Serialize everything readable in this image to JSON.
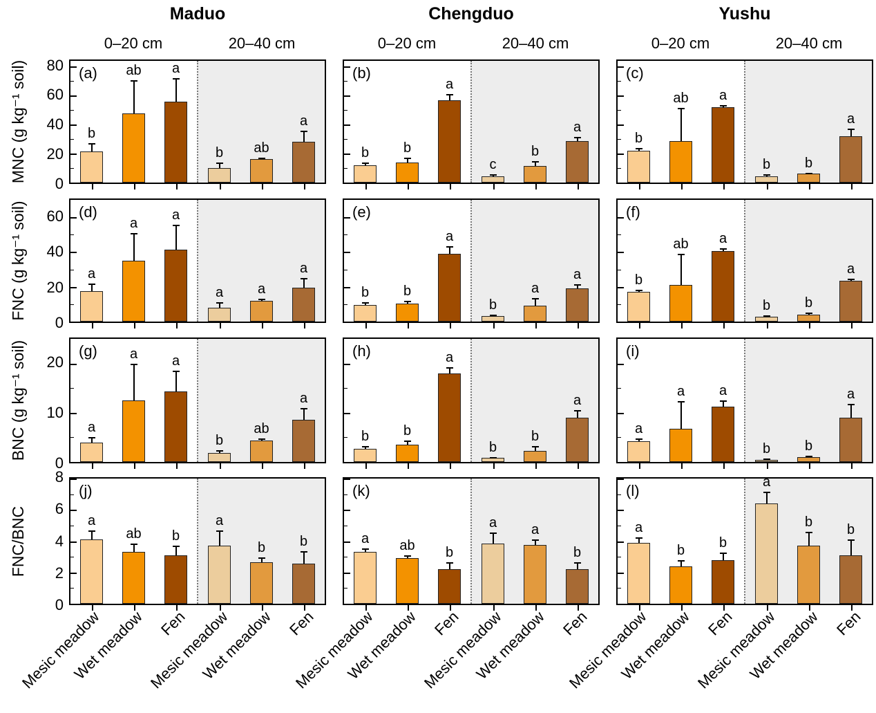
{
  "chart_data": {
    "type": "bar",
    "title": "",
    "sites": [
      "Maduo",
      "Chengduo",
      "Yushu"
    ],
    "depth_headers": [
      "0–20 cm",
      "20–40 cm"
    ],
    "categories": [
      "Mesic meadow",
      "Wet meadow",
      "Fen"
    ],
    "colors": {
      "bars_0_20": [
        "#FACD91",
        "#F39200",
        "#9E4B00"
      ],
      "bars_20_40": [
        "#ECCD9D",
        "#E29A3E",
        "#A76A34"
      ],
      "deep_background": "#EDEDED",
      "axis": "#000000"
    },
    "rows": [
      {
        "ylabel": "MNC (g kg⁻¹ soil)",
        "ymax": 84,
        "yticks": [
          0,
          20,
          40,
          60,
          80
        ],
        "panels": [
          {
            "tag": "(a)",
            "site": "Maduo",
            "halves": [
              {
                "depth": "0–20 cm",
                "values": [
                  21.5,
                  47.5,
                  56
                ],
                "errors": [
                  5.5,
                  23,
                  16
                ],
                "letters": [
                  "b",
                  "ab",
                  "a"
                ]
              },
              {
                "depth": "20–40 cm",
                "values": [
                  10,
                  16,
                  28
                ],
                "errors": [
                  4,
                  1,
                  8
                ],
                "letters": [
                  "b",
                  "ab",
                  "a"
                ]
              }
            ]
          },
          {
            "tag": "(b)",
            "site": "Chengduo",
            "halves": [
              {
                "depth": "0–20 cm",
                "values": [
                  12,
                  14,
                  57
                ],
                "errors": [
                  2,
                  3,
                  4
                ],
                "letters": [
                  "b",
                  "b",
                  "a"
                ]
              },
              {
                "depth": "20–40 cm",
                "values": [
                  4.5,
                  11.5,
                  28.5
                ],
                "errors": [
                  1,
                  3.5,
                  3
                ],
                "letters": [
                  "c",
                  "b",
                  "a"
                ]
              }
            ]
          },
          {
            "tag": "(c)",
            "site": "Yushu",
            "halves": [
              {
                "depth": "0–20 cm",
                "values": [
                  22,
                  28.5,
                  52
                ],
                "errors": [
                  2,
                  23,
                  1.5
                ],
                "letters": [
                  "b",
                  "ab",
                  "a"
                ]
              },
              {
                "depth": "20–40 cm",
                "values": [
                  4.3,
                  6,
                  32
                ],
                "errors": [
                  1.5,
                  0.8,
                  5
                ],
                "letters": [
                  "b",
                  "b",
                  "a"
                ]
              }
            ]
          }
        ]
      },
      {
        "ylabel": "FNC (g kg⁻¹ soil)",
        "ymax": 70,
        "yticks": [
          0,
          20,
          40,
          60
        ],
        "panels": [
          {
            "tag": "(d)",
            "site": "Maduo",
            "halves": [
              {
                "depth": "0–20 cm",
                "values": [
                  17.5,
                  35,
                  41.5
                ],
                "errors": [
                  4.5,
                  16,
                  14
                ],
                "letters": [
                  "a",
                  "a",
                  "a"
                ]
              },
              {
                "depth": "20–40 cm",
                "values": [
                  8,
                  12,
                  19.5
                ],
                "errors": [
                  3,
                  1,
                  5.5
                ],
                "letters": [
                  "a",
                  "a",
                  "a"
                ]
              }
            ]
          },
          {
            "tag": "(e)",
            "site": "Chengduo",
            "halves": [
              {
                "depth": "0–20 cm",
                "values": [
                  9.5,
                  10.5,
                  39
                ],
                "errors": [
                  1.5,
                  1.5,
                  4.5
                ],
                "letters": [
                  "b",
                  "b",
                  "a"
                ]
              },
              {
                "depth": "20–40 cm",
                "values": [
                  3.3,
                  9,
                  19
                ],
                "errors": [
                  0.7,
                  4.5,
                  2.5
                ],
                "letters": [
                  "b",
                  "a",
                  "a"
                ]
              }
            ]
          },
          {
            "tag": "(f)",
            "site": "Yushu",
            "halves": [
              {
                "depth": "0–20 cm",
                "values": [
                  17,
                  21,
                  40.5
                ],
                "errors": [
                  1.5,
                  18,
                  1.5
                ],
                "letters": [
                  "b",
                  "ab",
                  "a"
                ]
              },
              {
                "depth": "20–40 cm",
                "values": [
                  2.7,
                  4,
                  23.3
                ],
                "errors": [
                  1,
                  1,
                  1.5
                ],
                "letters": [
                  "b",
                  "b",
                  "a"
                ]
              }
            ]
          }
        ]
      },
      {
        "ylabel": "BNC (g kg⁻¹ soil)",
        "ymax": 25,
        "yticks": [
          0,
          10,
          20
        ],
        "panels": [
          {
            "tag": "(g)",
            "site": "Maduo",
            "halves": [
              {
                "depth": "0–20 cm",
                "values": [
                  4,
                  12.5,
                  14.3
                ],
                "errors": [
                  1,
                  7.5,
                  4.3
                ],
                "letters": [
                  "a",
                  "a",
                  "a"
                ]
              },
              {
                "depth": "20–40 cm",
                "values": [
                  1.8,
                  4.3,
                  8.5
                ],
                "errors": [
                  0.6,
                  0.5,
                  2.4
                ],
                "letters": [
                  "b",
                  "ab",
                  "a"
                ]
              }
            ]
          },
          {
            "tag": "(h)",
            "site": "Chengduo",
            "halves": [
              {
                "depth": "0–20 cm",
                "values": [
                  2.7,
                  3.5,
                  18
                ],
                "errors": [
                  0.6,
                  0.9,
                  1.2
                ],
                "letters": [
                  "b",
                  "b",
                  "a"
                ]
              },
              {
                "depth": "20–40 cm",
                "values": [
                  0.8,
                  2.3,
                  9
                ],
                "errors": [
                  0.2,
                  1,
                  1.5
                ],
                "letters": [
                  "b",
                  "b",
                  "a"
                ]
              }
            ]
          },
          {
            "tag": "(i)",
            "site": "Yushu",
            "halves": [
              {
                "depth": "0–20 cm",
                "values": [
                  4.2,
                  6.7,
                  11.2
                ],
                "errors": [
                  0.6,
                  5.7,
                  1.3
                ],
                "letters": [
                  "a",
                  "a",
                  "a"
                ]
              },
              {
                "depth": "20–40 cm",
                "values": [
                  0.4,
                  1,
                  9
                ],
                "errors": [
                  0.3,
                  0.3,
                  2.8
                ],
                "letters": [
                  "b",
                  "b",
                  "a"
                ]
              }
            ]
          }
        ]
      },
      {
        "ylabel": "FNC/BNC",
        "ymax": 8,
        "yticks": [
          0,
          2,
          4,
          6,
          8
        ],
        "panels": [
          {
            "tag": "(j)",
            "site": "Maduo",
            "halves": [
              {
                "depth": "0–20 cm",
                "values": [
                  4.1,
                  3.3,
                  3.1
                ],
                "errors": [
                  0.6,
                  0.55,
                  0.6
                ],
                "letters": [
                  "a",
                  "ab",
                  "b"
                ]
              },
              {
                "depth": "20–40 cm",
                "values": [
                  3.7,
                  2.65,
                  2.55
                ],
                "errors": [
                  1.0,
                  0.3,
                  0.8
                ],
                "letters": [
                  "a",
                  "b",
                  "b"
                ]
              }
            ]
          },
          {
            "tag": "(k)",
            "site": "Chengduo",
            "halves": [
              {
                "depth": "0–20 cm",
                "values": [
                  3.3,
                  2.9,
                  2.2
                ],
                "errors": [
                  0.25,
                  0.2,
                  0.45
                ],
                "letters": [
                  "a",
                  "ab",
                  "b"
                ]
              },
              {
                "depth": "20–40 cm",
                "values": [
                  3.85,
                  3.75,
                  2.2
                ],
                "errors": [
                  0.7,
                  0.35,
                  0.45
                ],
                "letters": [
                  "a",
                  "a",
                  "b"
                ]
              }
            ]
          },
          {
            "tag": "(l)",
            "site": "Yushu",
            "halves": [
              {
                "depth": "0–20 cm",
                "values": [
                  3.9,
                  2.4,
                  2.8
                ],
                "errors": [
                  0.35,
                  0.4,
                  0.45
                ],
                "letters": [
                  "a",
                  "b",
                  "b"
                ]
              },
              {
                "depth": "20–40 cm",
                "values": [
                  6.4,
                  3.7,
                  3.1
                ],
                "errors": [
                  0.75,
                  0.9,
                  1.0
                ],
                "letters": [
                  "a",
                  "b",
                  "b"
                ]
              }
            ]
          }
        ]
      }
    ]
  }
}
